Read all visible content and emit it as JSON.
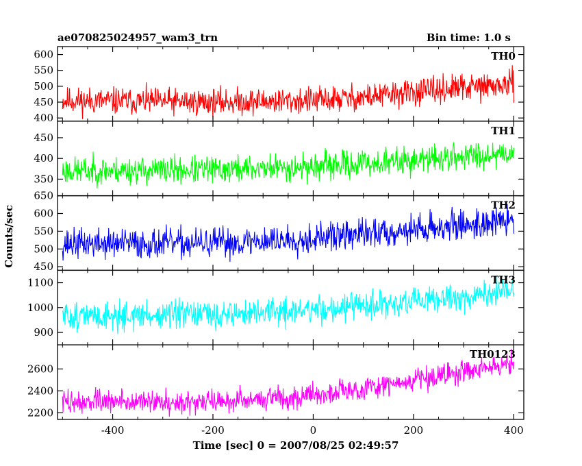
{
  "chart_data": {
    "type": "line",
    "title": "ae070825024957_wam3_trn",
    "subtitle": "Bin time: 1.0 s",
    "xlabel": "Time [sec] 0 = 2007/08/25 02:49:57",
    "ylabel": "Counts/sec",
    "xlim": [
      -510,
      420
    ],
    "x_ticks": [
      -400,
      -200,
      0,
      200,
      400
    ],
    "x_range_data": [
      -500,
      400
    ],
    "bin_time_s": 1.0,
    "panels": [
      {
        "name": "TH0",
        "color": "#ff0000",
        "ylim": [
          390,
          625
        ],
        "y_ticks": [
          400,
          450,
          500,
          550,
          600
        ],
        "trend": [
          [
            -500,
            455
          ],
          [
            -200,
            450
          ],
          [
            0,
            455
          ],
          [
            100,
            465
          ],
          [
            200,
            480
          ],
          [
            300,
            495
          ],
          [
            400,
            505
          ]
        ],
        "noise": 28,
        "seed": 11
      },
      {
        "name": "TH1",
        "color": "#00ff00",
        "ylim": [
          310,
          490
        ],
        "y_ticks": [
          350,
          400,
          450
        ],
        "trend": [
          [
            -500,
            370
          ],
          [
            -200,
            372
          ],
          [
            0,
            380
          ],
          [
            200,
            395
          ],
          [
            400,
            415
          ]
        ],
        "noise": 22,
        "seed": 23
      },
      {
        "name": "TH2",
        "color": "#0000ff",
        "ylim": [
          440,
          650
        ],
        "y_ticks": [
          450,
          500,
          550,
          600,
          650
        ],
        "trend": [
          [
            -500,
            515
          ],
          [
            -200,
            515
          ],
          [
            0,
            530
          ],
          [
            200,
            555
          ],
          [
            400,
            580
          ]
        ],
        "noise": 28,
        "seed": 37
      },
      {
        "name": "TH3",
        "color": "#00ffff",
        "ylim": [
          850,
          1150
        ],
        "y_ticks": [
          900,
          1000,
          1100
        ],
        "trend": [
          [
            -500,
            965
          ],
          [
            -200,
            970
          ],
          [
            0,
            990
          ],
          [
            200,
            1020
          ],
          [
            400,
            1065
          ]
        ],
        "noise": 38,
        "seed": 51
      },
      {
        "name": "TH0123",
        "color": "#ff00ff",
        "ylim": [
          2140,
          2820
        ],
        "y_ticks": [
          2200,
          2400,
          2600
        ],
        "trend": [
          [
            -500,
            2300
          ],
          [
            -200,
            2300
          ],
          [
            0,
            2360
          ],
          [
            100,
            2420
          ],
          [
            200,
            2500
          ],
          [
            300,
            2580
          ],
          [
            400,
            2650
          ]
        ],
        "noise": 70,
        "seed": 73
      }
    ]
  }
}
